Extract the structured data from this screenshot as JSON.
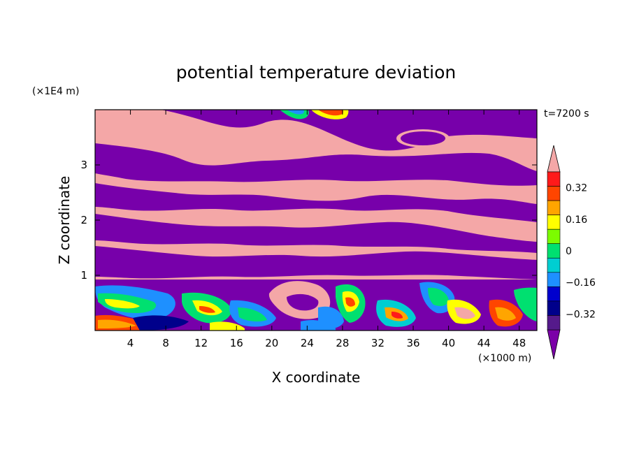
{
  "chart_data": {
    "type": "heatmap",
    "title": "potential temperature deviation",
    "time_label": "t=7200 s",
    "xlabel": "X coordinate",
    "ylabel": "Z coordinate",
    "x_unit_label": "(×1000 m)",
    "y_unit_label": "(×1E4 m)",
    "xlim": [
      0,
      50
    ],
    "ylim": [
      0,
      4
    ],
    "x_ticks": [
      4,
      8,
      12,
      16,
      20,
      24,
      28,
      32,
      36,
      40,
      44,
      48
    ],
    "y_ticks": [
      1,
      2,
      3
    ],
    "colorbar": {
      "levels": [
        -0.4,
        -0.32,
        -0.24,
        -0.16,
        -0.08,
        0,
        0.08,
        0.16,
        0.24,
        0.32,
        0.4
      ],
      "tick_labels": [
        "−0.32",
        "−0.16",
        "0",
        "0.16",
        "0.32"
      ],
      "tick_values": [
        -0.32,
        -0.16,
        0,
        0.16,
        0.32
      ],
      "colors": [
        "#551a8b",
        "#00008b",
        "#0000cd",
        "#1e90ff",
        "#00ced1",
        "#00e070",
        "#7cfc00",
        "#ffff00",
        "#ffa500",
        "#ff4500",
        "#ff1a1a"
      ],
      "over_color": "#f4a7a7",
      "under_color": "#7b00a8"
    },
    "description_palette": {
      "high": "#f4a7a7",
      "low": "#7700aa"
    }
  }
}
